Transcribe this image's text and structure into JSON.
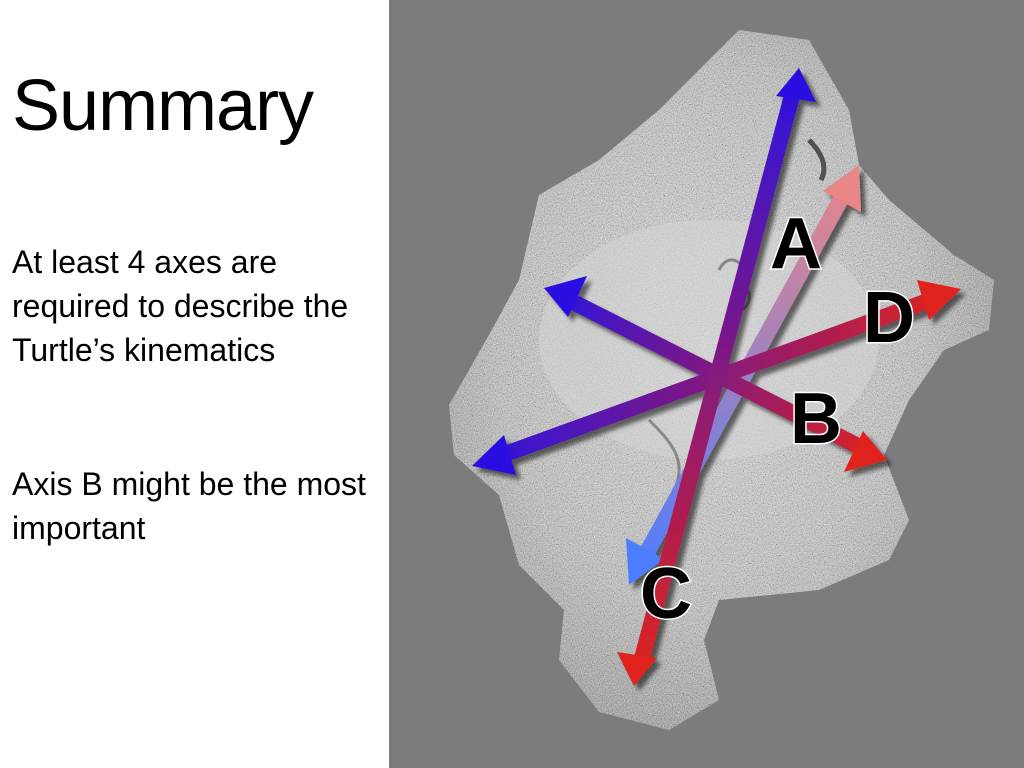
{
  "slide": {
    "title": "Summary",
    "paragraphs": [
      "At least 4 axes are required to describe the Turtle’s kinematics",
      "Axis B might be the most important"
    ]
  },
  "figure": {
    "axis_labels": [
      "A",
      "B",
      "C",
      "D"
    ],
    "background_color": "#7c7c7e",
    "arrow_colors": {
      "blue_end": "#2a10e0",
      "red_end": "#e0241a",
      "light_blue": "#5a8cff",
      "pink": "#e89a9a"
    }
  }
}
